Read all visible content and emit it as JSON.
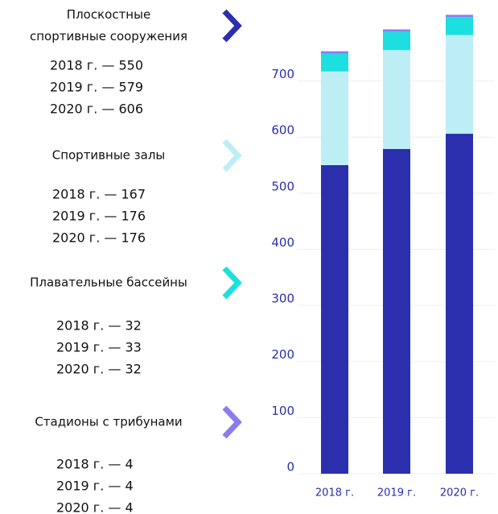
{
  "chart_data": {
    "type": "bar",
    "stacked": true,
    "categories": [
      "2018 г.",
      "2019 г.",
      "2020 г."
    ],
    "series": [
      {
        "name": "Плоскостные спортивные сооружения",
        "color": "#2b2fae",
        "values": [
          550,
          579,
          606
        ],
        "value_labels": [
          "2018 г. —  550",
          "2019 г. — 579",
          "2020 г. — 606"
        ]
      },
      {
        "name": "Спортивные залы",
        "color": "#bdeef5",
        "values": [
          167,
          176,
          176
        ],
        "value_labels": [
          "2018 г. —  167",
          "2019 г. — 176",
          "2020 г. — 176"
        ]
      },
      {
        "name": "Плавательные бассейны",
        "color": "#1ddfe0",
        "values": [
          32,
          33,
          32
        ],
        "value_labels": [
          "2018 г. —  32",
          "2019 г. — 33",
          "2020 г. — 32"
        ]
      },
      {
        "name": "Стадионы с трибунами",
        "color": "#8a7cf0",
        "values": [
          4,
          4,
          4
        ],
        "value_labels": [
          "2018 г. —  4",
          "2019 г. — 4",
          "2020 г. — 4"
        ]
      }
    ],
    "ylim": [
      0,
      820
    ],
    "yticks": [
      0,
      100,
      200,
      300,
      400,
      500,
      600,
      700
    ],
    "grid": true
  }
}
